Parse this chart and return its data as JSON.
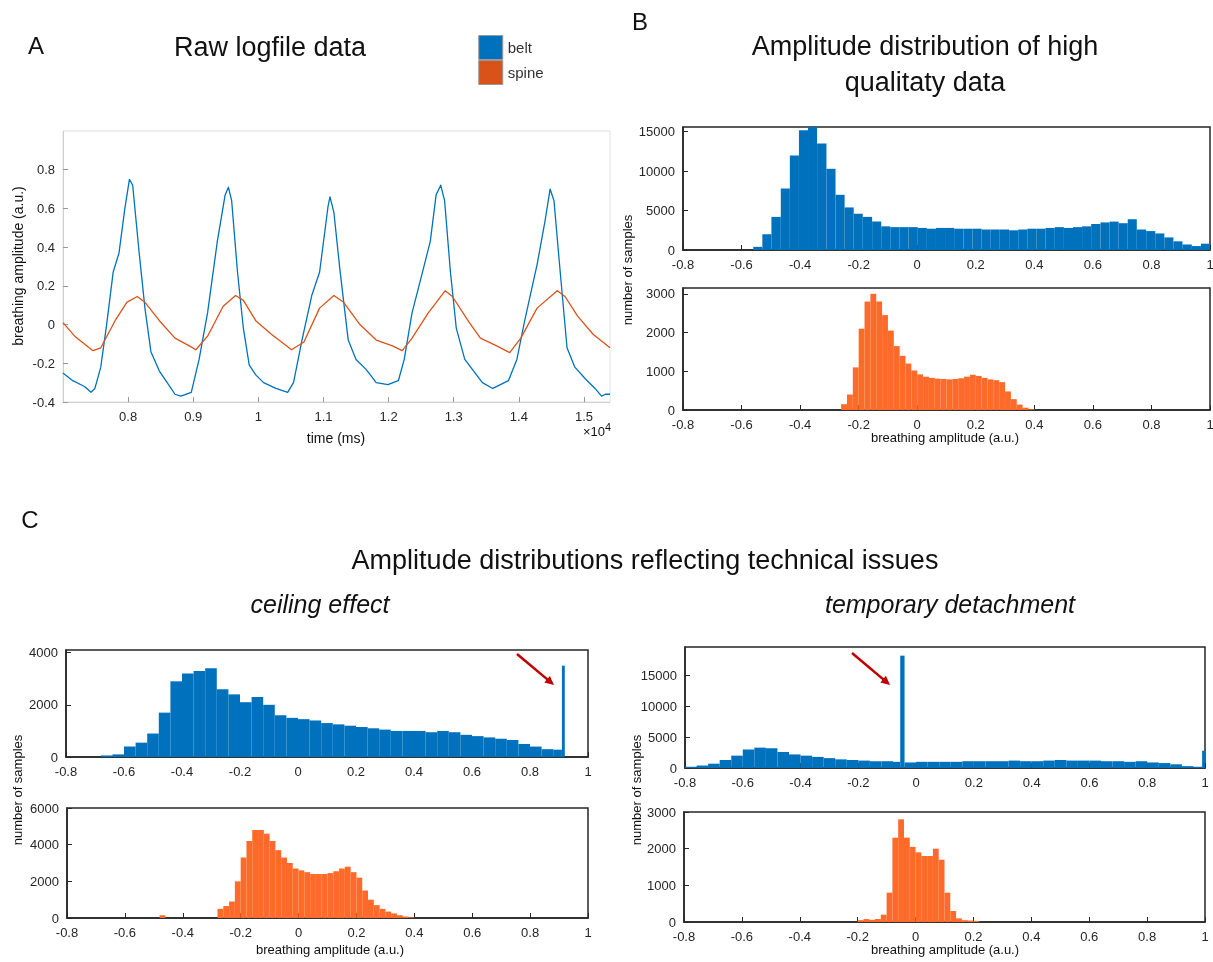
{
  "chart_data": [
    {
      "type": "line",
      "title": "Raw logfile data",
      "xlabel": "time (ms)",
      "ylabel": "breathing amplitude (a.u.)",
      "annotations": [
        "A",
        "×10$^{4}$"
      ],
      "xlim": [
        0.7,
        1.54
      ],
      "ylim": [
        -0.4,
        1.0
      ],
      "xticks": [
        0.8,
        0.9,
        1,
        1.1,
        1.2,
        1.3,
        1.4,
        1.5
      ],
      "yticks": [
        -0.4,
        -0.2,
        0,
        0.2,
        0.4,
        0.6,
        0.8
      ],
      "legend": "top right",
      "series": [
        {
          "name": "belt",
          "color": "#0072bd",
          "x": [
            0.7,
            0.715,
            0.733,
            0.743,
            0.749,
            0.758,
            0.767,
            0.777,
            0.786,
            0.795,
            0.802,
            0.807,
            0.817,
            0.826,
            0.835,
            0.848,
            0.86,
            0.872,
            0.881,
            0.897,
            0.909,
            0.922,
            0.937,
            0.949,
            0.954,
            0.959,
            0.968,
            0.977,
            0.986,
            0.996,
            1.008,
            1.027,
            1.045,
            1.054,
            1.067,
            1.082,
            1.094,
            1.107,
            1.11,
            1.116,
            1.125,
            1.138,
            1.15,
            1.165,
            1.172,
            1.181,
            1.199,
            1.215,
            1.224,
            1.236,
            1.255,
            1.264,
            1.273,
            1.28,
            1.286,
            1.295,
            1.304,
            1.317,
            1.335,
            1.344,
            1.36,
            1.384,
            1.397,
            1.409,
            1.428,
            1.44,
            1.448,
            1.454,
            1.462,
            1.474,
            1.486,
            1.502,
            1.517,
            1.527,
            1.533,
            1.54
          ],
          "values": [
            -0.25,
            -0.29,
            -0.32,
            -0.35,
            -0.33,
            -0.22,
            0.0,
            0.27,
            0.37,
            0.6,
            0.75,
            0.72,
            0.37,
            0.08,
            -0.14,
            -0.24,
            -0.3,
            -0.36,
            -0.37,
            -0.35,
            -0.18,
            0.06,
            0.43,
            0.67,
            0.71,
            0.64,
            0.27,
            -0.02,
            -0.21,
            -0.26,
            -0.3,
            -0.33,
            -0.35,
            -0.3,
            -0.08,
            0.15,
            0.27,
            0.61,
            0.66,
            0.58,
            0.29,
            -0.08,
            -0.18,
            -0.23,
            -0.26,
            -0.3,
            -0.31,
            -0.29,
            -0.18,
            0.06,
            0.31,
            0.43,
            0.67,
            0.72,
            0.64,
            0.27,
            -0.02,
            -0.18,
            -0.26,
            -0.3,
            -0.33,
            -0.29,
            -0.18,
            0.02,
            0.31,
            0.53,
            0.7,
            0.64,
            0.33,
            -0.12,
            -0.22,
            -0.28,
            -0.33,
            -0.37,
            -0.36,
            -0.36
          ]
        },
        {
          "name": "spine",
          "color": "#d95319",
          "x": [
            0.7,
            0.718,
            0.733,
            0.746,
            0.758,
            0.78,
            0.798,
            0.814,
            0.826,
            0.848,
            0.872,
            0.894,
            0.904,
            0.922,
            0.946,
            0.965,
            0.977,
            0.996,
            1.02,
            1.051,
            1.07,
            1.094,
            1.116,
            1.131,
            1.156,
            1.181,
            1.206,
            1.221,
            1.236,
            1.261,
            1.287,
            1.298,
            1.323,
            1.341,
            1.366,
            1.386,
            1.403,
            1.428,
            1.459,
            1.471,
            1.49,
            1.514,
            1.54
          ],
          "values": [
            0.01,
            -0.06,
            -0.1,
            -0.135,
            -0.12,
            0.02,
            0.115,
            0.145,
            0.115,
            0.02,
            -0.07,
            -0.11,
            -0.13,
            -0.06,
            0.095,
            0.15,
            0.125,
            0.02,
            -0.05,
            -0.13,
            -0.09,
            0.085,
            0.15,
            0.115,
            0.0,
            -0.08,
            -0.11,
            -0.135,
            -0.07,
            0.06,
            0.175,
            0.145,
            0.015,
            -0.07,
            -0.11,
            -0.145,
            -0.07,
            0.085,
            0.175,
            0.145,
            0.045,
            -0.05,
            -0.12
          ]
        }
      ]
    },
    {
      "type": "histogram",
      "title": "Amplitude distribution of high qualitaty data",
      "ylabel": "number of samples",
      "annotations": [
        "B"
      ],
      "color": "#0072bd",
      "xlim": [
        -0.8,
        1
      ],
      "ylim": [
        0,
        15600
      ],
      "xticks": [
        -0.8,
        -0.6,
        -0.4,
        -0.2,
        0,
        0.2,
        0.4,
        0.6,
        0.8,
        1
      ],
      "yticks": [
        0,
        5000,
        10000,
        15000
      ],
      "bins": [
        -0.56,
        -0.529,
        -0.498,
        -0.466,
        -0.435,
        -0.404,
        -0.373,
        -0.342,
        -0.31,
        -0.279,
        -0.248,
        -0.217,
        -0.186,
        -0.154,
        -0.123,
        -0.092,
        -0.061,
        -0.03,
        0.002,
        0.033,
        0.064,
        0.095,
        0.126,
        0.158,
        0.189,
        0.22,
        0.251,
        0.282,
        0.314,
        0.345,
        0.376,
        0.407,
        0.438,
        0.47,
        0.501,
        0.532,
        0.563,
        0.594,
        0.626,
        0.657,
        0.688,
        0.719,
        0.75,
        0.782,
        0.813,
        0.844,
        0.875,
        0.906,
        0.938,
        0.969,
        1.0
      ],
      "values": [
        400,
        2000,
        4200,
        7800,
        12000,
        15200,
        15600,
        13500,
        10300,
        7000,
        5400,
        4600,
        4200,
        3600,
        3000,
        2900,
        2900,
        2900,
        2800,
        2700,
        2800,
        2800,
        2700,
        2700,
        2700,
        2600,
        2600,
        2600,
        2500,
        2600,
        2700,
        2700,
        2800,
        2900,
        2800,
        2900,
        3000,
        3300,
        3500,
        3600,
        3400,
        3900,
        2600,
        2400,
        2100,
        1600,
        1100,
        700,
        500,
        800
      ]
    },
    {
      "type": "histogram",
      "xlabel": "breathing amplitude (a.u.)",
      "color": "#fd6a2a",
      "xlim": [
        -0.8,
        1
      ],
      "ylim": [
        0,
        3150
      ],
      "xticks": [
        -0.8,
        -0.6,
        -0.4,
        -0.2,
        0,
        0.2,
        0.4,
        0.6,
        0.8,
        1
      ],
      "yticks": [
        0,
        1000,
        2000,
        3000
      ],
      "bins": [
        -0.26,
        -0.24,
        -0.22,
        -0.2,
        -0.18,
        -0.16,
        -0.14,
        -0.12,
        -0.1,
        -0.08,
        -0.06,
        -0.04,
        -0.02,
        0,
        0.02,
        0.04,
        0.06,
        0.08,
        0.1,
        0.12,
        0.14,
        0.16,
        0.18,
        0.2,
        0.22,
        0.24,
        0.26,
        0.28,
        0.3,
        0.32,
        0.34,
        0.36,
        0.38,
        0.4
      ],
      "values": [
        150,
        400,
        1100,
        2100,
        2800,
        3000,
        2800,
        2450,
        2050,
        1650,
        1400,
        1200,
        1020,
        920,
        860,
        830,
        810,
        800,
        790,
        800,
        820,
        860,
        910,
        880,
        830,
        790,
        770,
        720,
        480,
        280,
        140,
        60,
        20
      ]
    },
    {
      "type": "histogram",
      "title": "ceiling effect",
      "ylabel": "number of samples",
      "annotations": [
        "C",
        "Amplitude distributions reflecting technical issues"
      ],
      "color": "#0072bd",
      "xlim": [
        -0.8,
        1
      ],
      "ylim": [
        0,
        4100
      ],
      "xticks": [
        -0.8,
        -0.6,
        -0.4,
        -0.2,
        0,
        0.2,
        0.4,
        0.6,
        0.8,
        1
      ],
      "yticks": [
        0,
        2000,
        4000
      ],
      "bins": [
        -0.68,
        -0.64,
        -0.6,
        -0.56,
        -0.52,
        -0.48,
        -0.44,
        -0.4,
        -0.36,
        -0.32,
        -0.28,
        -0.24,
        -0.2,
        -0.16,
        -0.12,
        -0.08,
        -0.04,
        0,
        0.04,
        0.08,
        0.12,
        0.16,
        0.2,
        0.24,
        0.28,
        0.32,
        0.36,
        0.4,
        0.44,
        0.48,
        0.52,
        0.56,
        0.6,
        0.64,
        0.68,
        0.72,
        0.76,
        0.8,
        0.84,
        0.88,
        0.91,
        0.92
      ],
      "values": [
        60,
        100,
        400,
        550,
        900,
        1700,
        2900,
        3200,
        3300,
        3400,
        2600,
        2400,
        2100,
        2300,
        2000,
        1600,
        1500,
        1450,
        1400,
        1300,
        1250,
        1200,
        1150,
        1100,
        1050,
        1000,
        1000,
        1000,
        950,
        1000,
        950,
        850,
        800,
        750,
        700,
        650,
        500,
        400,
        300,
        280,
        3500
      ]
    },
    {
      "type": "histogram",
      "xlabel": "breathing amplitude (a.u.)",
      "color": "#fd6a2a",
      "xlim": [
        -0.8,
        1
      ],
      "ylim": [
        0,
        6000
      ],
      "xticks": [
        -0.8,
        -0.6,
        -0.4,
        -0.2,
        0,
        0.2,
        0.4,
        0.6,
        0.8,
        1
      ],
      "yticks": [
        0,
        2000,
        4000,
        6000
      ],
      "bins": [
        -0.48,
        -0.46,
        -0.44,
        -0.42,
        -0.4,
        -0.38,
        -0.36,
        -0.34,
        -0.32,
        -0.3,
        -0.28,
        -0.26,
        -0.24,
        -0.22,
        -0.2,
        -0.18,
        -0.16,
        -0.14,
        -0.12,
        -0.1,
        -0.08,
        -0.06,
        -0.04,
        -0.02,
        0,
        0.02,
        0.04,
        0.06,
        0.08,
        0.1,
        0.12,
        0.14,
        0.16,
        0.18,
        0.2,
        0.22,
        0.24,
        0.26,
        0.28,
        0.3,
        0.32,
        0.34,
        0.36,
        0.38,
        0.4
      ],
      "values": [
        150,
        0,
        0,
        0,
        0,
        0,
        0,
        0,
        0,
        0,
        500,
        650,
        900,
        2000,
        3300,
        4200,
        4800,
        4800,
        4600,
        4200,
        3700,
        3300,
        3000,
        2700,
        2600,
        2500,
        2400,
        2400,
        2400,
        2450,
        2550,
        2700,
        2800,
        2500,
        2200,
        1500,
        1000,
        700,
        500,
        350,
        250,
        150,
        80,
        40
      ]
    },
    {
      "type": "histogram",
      "title": "temporary detachment",
      "ylabel": "number of samples",
      "color": "#0072bd",
      "xlim": [
        -0.8,
        1
      ],
      "ylim": [
        0,
        19600
      ],
      "xticks": [
        -0.8,
        -0.6,
        -0.4,
        -0.2,
        0,
        0.2,
        0.4,
        0.6,
        0.8,
        1
      ],
      "yticks": [
        0,
        5000,
        10000,
        15000
      ],
      "bins": [
        -0.8,
        -0.76,
        -0.72,
        -0.68,
        -0.64,
        -0.6,
        -0.56,
        -0.52,
        -0.48,
        -0.44,
        -0.4,
        -0.36,
        -0.32,
        -0.28,
        -0.24,
        -0.2,
        -0.16,
        -0.12,
        -0.08,
        -0.055,
        -0.04,
        0,
        0.04,
        0.08,
        0.12,
        0.16,
        0.2,
        0.24,
        0.28,
        0.32,
        0.36,
        0.4,
        0.44,
        0.48,
        0.52,
        0.56,
        0.6,
        0.64,
        0.68,
        0.72,
        0.76,
        0.8,
        0.84,
        0.88,
        0.92,
        0.96,
        0.99,
        1
      ],
      "values": [
        200,
        400,
        700,
        1300,
        2000,
        3000,
        3300,
        3200,
        2600,
        2200,
        2000,
        1800,
        1600,
        1400,
        1300,
        1200,
        1100,
        1100,
        1000,
        18200,
        900,
        1000,
        1000,
        1000,
        1000,
        1100,
        1100,
        1100,
        1100,
        1200,
        1100,
        1100,
        1200,
        1300,
        1200,
        1200,
        1200,
        1100,
        1100,
        1000,
        1100,
        900,
        800,
        600,
        300,
        200,
        2800
      ]
    },
    {
      "type": "histogram",
      "xlabel": "breathing amplitude (a.u.)",
      "color": "#fd6a2a",
      "xlim": [
        -0.8,
        1
      ],
      "ylim": [
        0,
        3000
      ],
      "xticks": [
        -0.8,
        -0.6,
        -0.4,
        -0.2,
        0,
        0.2,
        0.4,
        0.6,
        0.8,
        1
      ],
      "yticks": [
        0,
        1000,
        2000,
        3000
      ],
      "bins": [
        -0.2,
        -0.18,
        -0.16,
        -0.14,
        -0.12,
        -0.1,
        -0.08,
        -0.06,
        -0.04,
        -0.02,
        0,
        0.02,
        0.04,
        0.06,
        0.08,
        0.1,
        0.12,
        0.14,
        0.16,
        0.18,
        0.2,
        0.22
      ],
      "values": [
        50,
        80,
        60,
        80,
        200,
        800,
        2300,
        2800,
        2300,
        2050,
        1900,
        1800,
        1800,
        2000,
        1700,
        800,
        300,
        100,
        50,
        40,
        30
      ]
    }
  ]
}
